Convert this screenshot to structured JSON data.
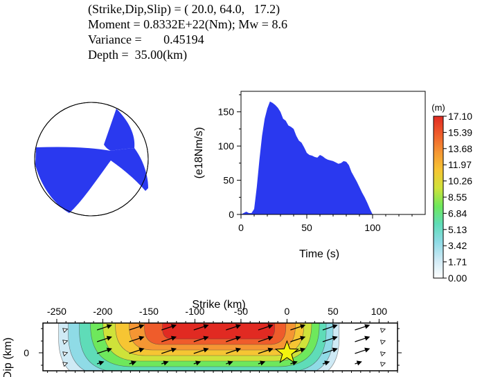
{
  "header": {
    "lines": [
      "(Strike,Dip,Slip) = ( 20.0, 64.0,   17.2)",
      "Moment = 0.8332E+22(Nm); Mw = 8.6",
      "Variance =       0.45194",
      "Depth =  35.00(km)"
    ]
  },
  "beachball": {
    "strike": 20.0,
    "dip": 64.0,
    "slip": 17.2,
    "compression_color": "#2a39ef",
    "dilatation_color": "#ffffff"
  },
  "colorbar": {
    "unit": "(m)",
    "ticks": [
      "17.10",
      "15.39",
      "13.68",
      "11.97",
      "10.26",
      "8.55",
      "6.84",
      "5.13",
      "3.42",
      "1.71",
      "0.00"
    ],
    "min": 0.0,
    "max": 17.1,
    "colors": [
      "#ffffff",
      "#cfeaf5",
      "#8fdbe6",
      "#5fdcb8",
      "#6ee85c",
      "#cfe23a",
      "#f6c533",
      "#f59633",
      "#ef5c2b",
      "#e12a22"
    ]
  },
  "chart_data": [
    {
      "type": "area",
      "title": "",
      "xlabel": "Time (s)",
      "ylabel": "(e18Nm/s)",
      "xlim": [
        0,
        140
      ],
      "ylim": [
        0,
        180
      ],
      "xticks": [
        "0",
        "50",
        "100"
      ],
      "yticks": [
        "0",
        "50",
        "100",
        "150"
      ],
      "grid": false,
      "fill_color": "#2a39ef",
      "x": [
        0,
        2,
        4,
        6,
        8,
        10,
        12,
        14,
        16,
        18,
        20,
        22,
        24,
        26,
        28,
        30,
        32,
        34,
        36,
        38,
        40,
        42,
        44,
        46,
        48,
        50,
        52,
        54,
        56,
        58,
        60,
        62,
        64,
        66,
        68,
        70,
        72,
        74,
        76,
        78,
        80,
        82,
        84,
        86,
        88,
        90,
        92,
        94,
        96,
        98,
        100
      ],
      "y": [
        0,
        2,
        4,
        2,
        2,
        8,
        40,
        80,
        115,
        140,
        155,
        165,
        163,
        160,
        156,
        150,
        140,
        137,
        130,
        128,
        125,
        115,
        108,
        105,
        98,
        90,
        87,
        86,
        84,
        83,
        87,
        85,
        82,
        80,
        79,
        78,
        76,
        74,
        75,
        78,
        77,
        72,
        62,
        55,
        48,
        40,
        32,
        25,
        17,
        8,
        0
      ]
    },
    {
      "type": "heatmap",
      "title": "",
      "xlabel": "Strike (km)",
      "ylabel": "Dip (km)",
      "xlim": [
        -265,
        120
      ],
      "xticks": [
        "-250",
        "-200",
        "-150",
        "-100",
        "-50",
        "0",
        "50",
        "100"
      ],
      "yticks": [
        "0"
      ],
      "value_range": [
        0,
        17.1
      ],
      "hypocenter": {
        "strike_km": 0,
        "dip_km": 0
      }
    }
  ]
}
